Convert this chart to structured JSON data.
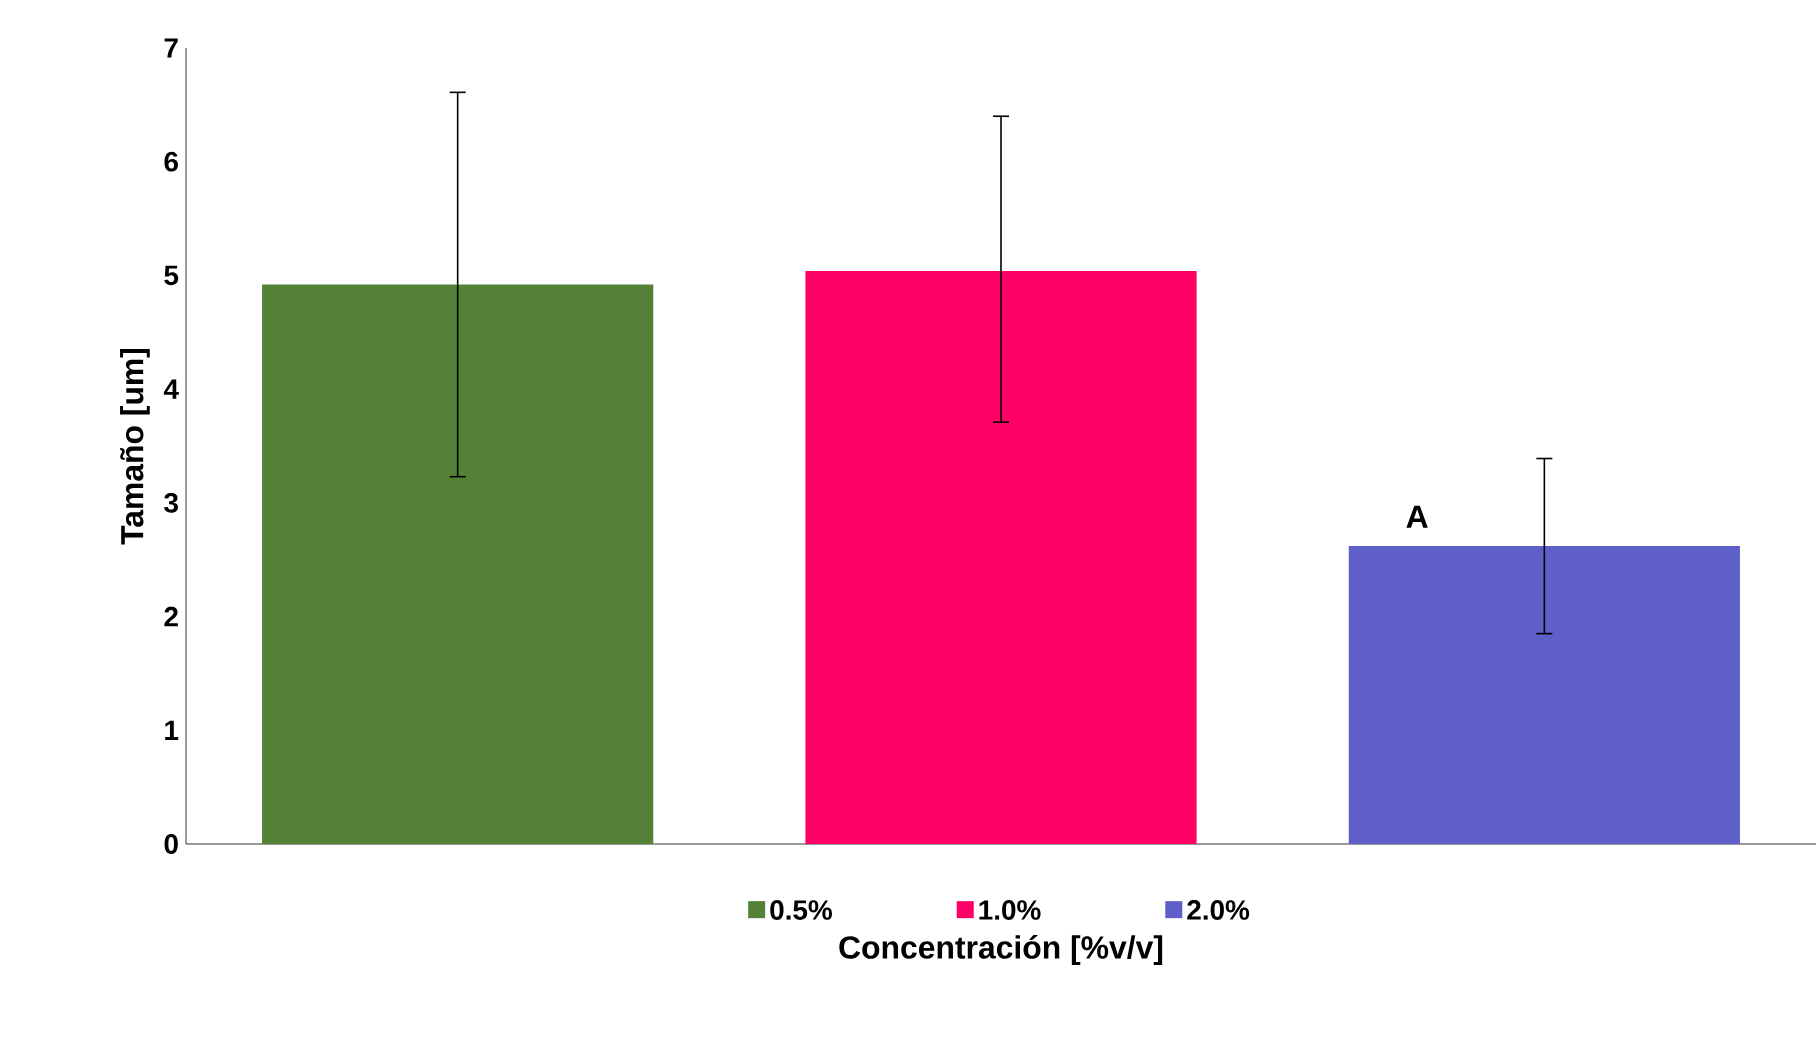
{
  "chart_data": {
    "type": "bar",
    "xlabel": "Concentración [%v/v]",
    "ylabel": "Tamaño [um]",
    "categories": [
      null,
      null,
      null
    ],
    "ylim": [
      0,
      7
    ],
    "yticks": [
      0,
      1,
      2,
      3,
      4,
      5,
      6,
      7
    ],
    "series": [
      {
        "name": "0.5%",
        "color": "#538135",
        "values": [
          4.92,
          null,
          null
        ],
        "errors": [
          [
            3.23,
            6.61
          ],
          null,
          null
        ]
      },
      {
        "name": "1.0%",
        "color": "#ff0066",
        "values": [
          null,
          5.04,
          null
        ],
        "errors": [
          null,
          [
            3.71,
            6.4
          ],
          null
        ]
      },
      {
        "name": "2.0%",
        "color": "#5f5fc9",
        "values": [
          null,
          null,
          2.62
        ],
        "errors": [
          null,
          null,
          [
            1.85,
            3.39
          ]
        ]
      }
    ],
    "annotations": [
      "A"
    ],
    "legend": "bottom",
    "grid": false
  }
}
